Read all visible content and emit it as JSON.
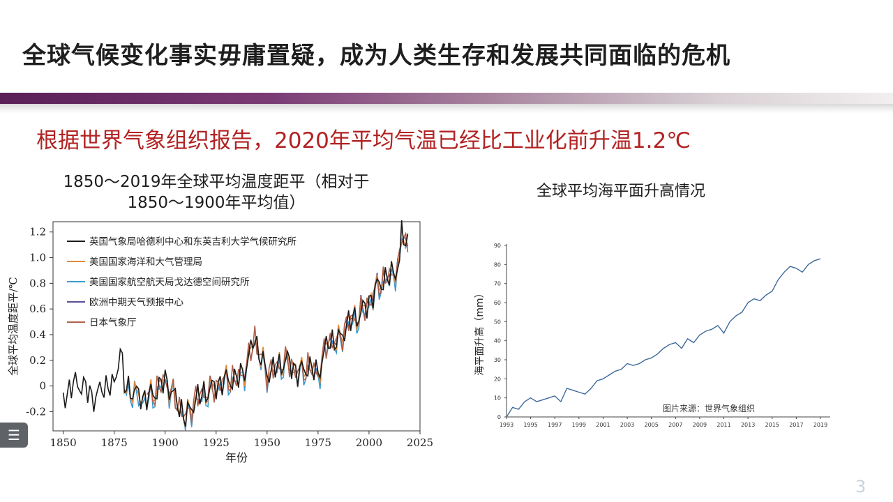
{
  "slide": {
    "title": "全球气候变化事实毋庸置疑，成为人类生存和发展共同面临的危机",
    "subtitle": "根据世界气象组织报告，2020年平均气温已经比工业化前升温1.2℃",
    "page_number": "3",
    "menu_icon": "list-menu-icon"
  },
  "colors": {
    "title_bar_start": "#5a1f58",
    "subtitle": "#b22222",
    "series_hadcrut": "#1a1a1a",
    "series_noaa": "#e08a3c",
    "series_nasa": "#3b9bd3",
    "series_ecmwf": "#5a4b9a",
    "series_jma": "#b0604a",
    "sea_line": "#3d6a9b"
  },
  "chart_data": [
    {
      "type": "line",
      "title_line1": "1850～2019年全球平均温度距平（相对于",
      "title_line2": "1850～1900年平均值）",
      "xlabel": "年份",
      "ylabel": "全球平均温度距平/℃",
      "xlim": [
        1845,
        2025
      ],
      "ylim": [
        -0.35,
        1.28
      ],
      "xticks": [
        "1850",
        "1875",
        "1900",
        "1925",
        "1950",
        "1975",
        "2000",
        "2025"
      ],
      "yticks": [
        "-0.2",
        "0",
        "0.2",
        "0.4",
        "0.6",
        "0.8",
        "1.0",
        "1.2"
      ],
      "legend_position": "top-left",
      "series": [
        {
          "name": "英国气象局哈德利中心和东英吉利大学气候研究所",
          "start_year": 1850,
          "color": "#1a1a1a"
        },
        {
          "name": "美国国家海洋和大气管理局",
          "start_year": 1880,
          "color": "#e08a3c"
        },
        {
          "name": "美国国家航空航天局戈达德空间研究所",
          "start_year": 1880,
          "color": "#3b9bd3"
        },
        {
          "name": "欧洲中期天气预报中心",
          "start_year": 1979,
          "color": "#5a4b9a"
        },
        {
          "name": "日本气象厅",
          "start_year": 1891,
          "color": "#b0604a"
        }
      ],
      "anchor_years": [
        1850,
        1855,
        1860,
        1865,
        1870,
        1875,
        1878,
        1880,
        1885,
        1890,
        1895,
        1900,
        1905,
        1910,
        1915,
        1920,
        1925,
        1930,
        1935,
        1940,
        1944,
        1945,
        1950,
        1955,
        1960,
        1965,
        1970,
        1975,
        1980,
        1985,
        1990,
        1995,
        2000,
        2005,
        2010,
        2015,
        2016,
        2019
      ],
      "anchor_values": [
        -0.1,
        0.02,
        0.0,
        -0.1,
        0.0,
        0.0,
        0.3,
        0.0,
        -0.05,
        -0.1,
        -0.05,
        0.05,
        -0.1,
        -0.25,
        -0.1,
        -0.05,
        0.0,
        0.05,
        0.05,
        0.15,
        0.4,
        0.3,
        0.1,
        0.15,
        0.2,
        0.1,
        0.15,
        0.1,
        0.35,
        0.35,
        0.5,
        0.55,
        0.65,
        0.8,
        0.85,
        0.95,
        1.2,
        1.1
      ]
    },
    {
      "type": "line",
      "title": "全球平均海平面升高情况",
      "ylabel": "海平面升高（mm）",
      "annotation": "图片来源：世界气象组织",
      "xlim": [
        1993,
        2019
      ],
      "ylim": [
        0,
        90
      ],
      "xticks": [
        "1993",
        "1995",
        "1997",
        "1999",
        "2001",
        "2003",
        "2005",
        "2007",
        "2009",
        "2011",
        "2013",
        "2015",
        "2017",
        "2019"
      ],
      "yticks": [
        "0",
        "10",
        "20",
        "30",
        "40",
        "50",
        "60",
        "70",
        "80",
        "90"
      ],
      "series": [
        {
          "name": "",
          "x": [
            1993.0,
            1993.5,
            1994.0,
            1994.5,
            1995.0,
            1995.5,
            1996.0,
            1996.5,
            1997.0,
            1997.5,
            1998.0,
            1998.5,
            1999.0,
            1999.5,
            2000.0,
            2000.5,
            2001.0,
            2001.5,
            2002.0,
            2002.5,
            2003.0,
            2003.5,
            2004.0,
            2004.5,
            2005.0,
            2005.5,
            2006.0,
            2006.5,
            2007.0,
            2007.5,
            2008.0,
            2008.5,
            2009.0,
            2009.5,
            2010.0,
            2010.5,
            2011.0,
            2011.5,
            2012.0,
            2012.5,
            2013.0,
            2013.5,
            2014.0,
            2014.5,
            2015.0,
            2015.5,
            2016.0,
            2016.5,
            2017.0,
            2017.5,
            2018.0,
            2018.5,
            2019.0
          ],
          "y": [
            0,
            5,
            4,
            8,
            10,
            8,
            9,
            10,
            11,
            8,
            15,
            14,
            13,
            12,
            15,
            19,
            20,
            22,
            24,
            25,
            28,
            27,
            28,
            30,
            31,
            33,
            36,
            38,
            39,
            36,
            41,
            39,
            43,
            45,
            46,
            48,
            44,
            50,
            53,
            55,
            60,
            62,
            61,
            64,
            66,
            72,
            76,
            79,
            78,
            76,
            80,
            82,
            83
          ]
        }
      ]
    }
  ]
}
